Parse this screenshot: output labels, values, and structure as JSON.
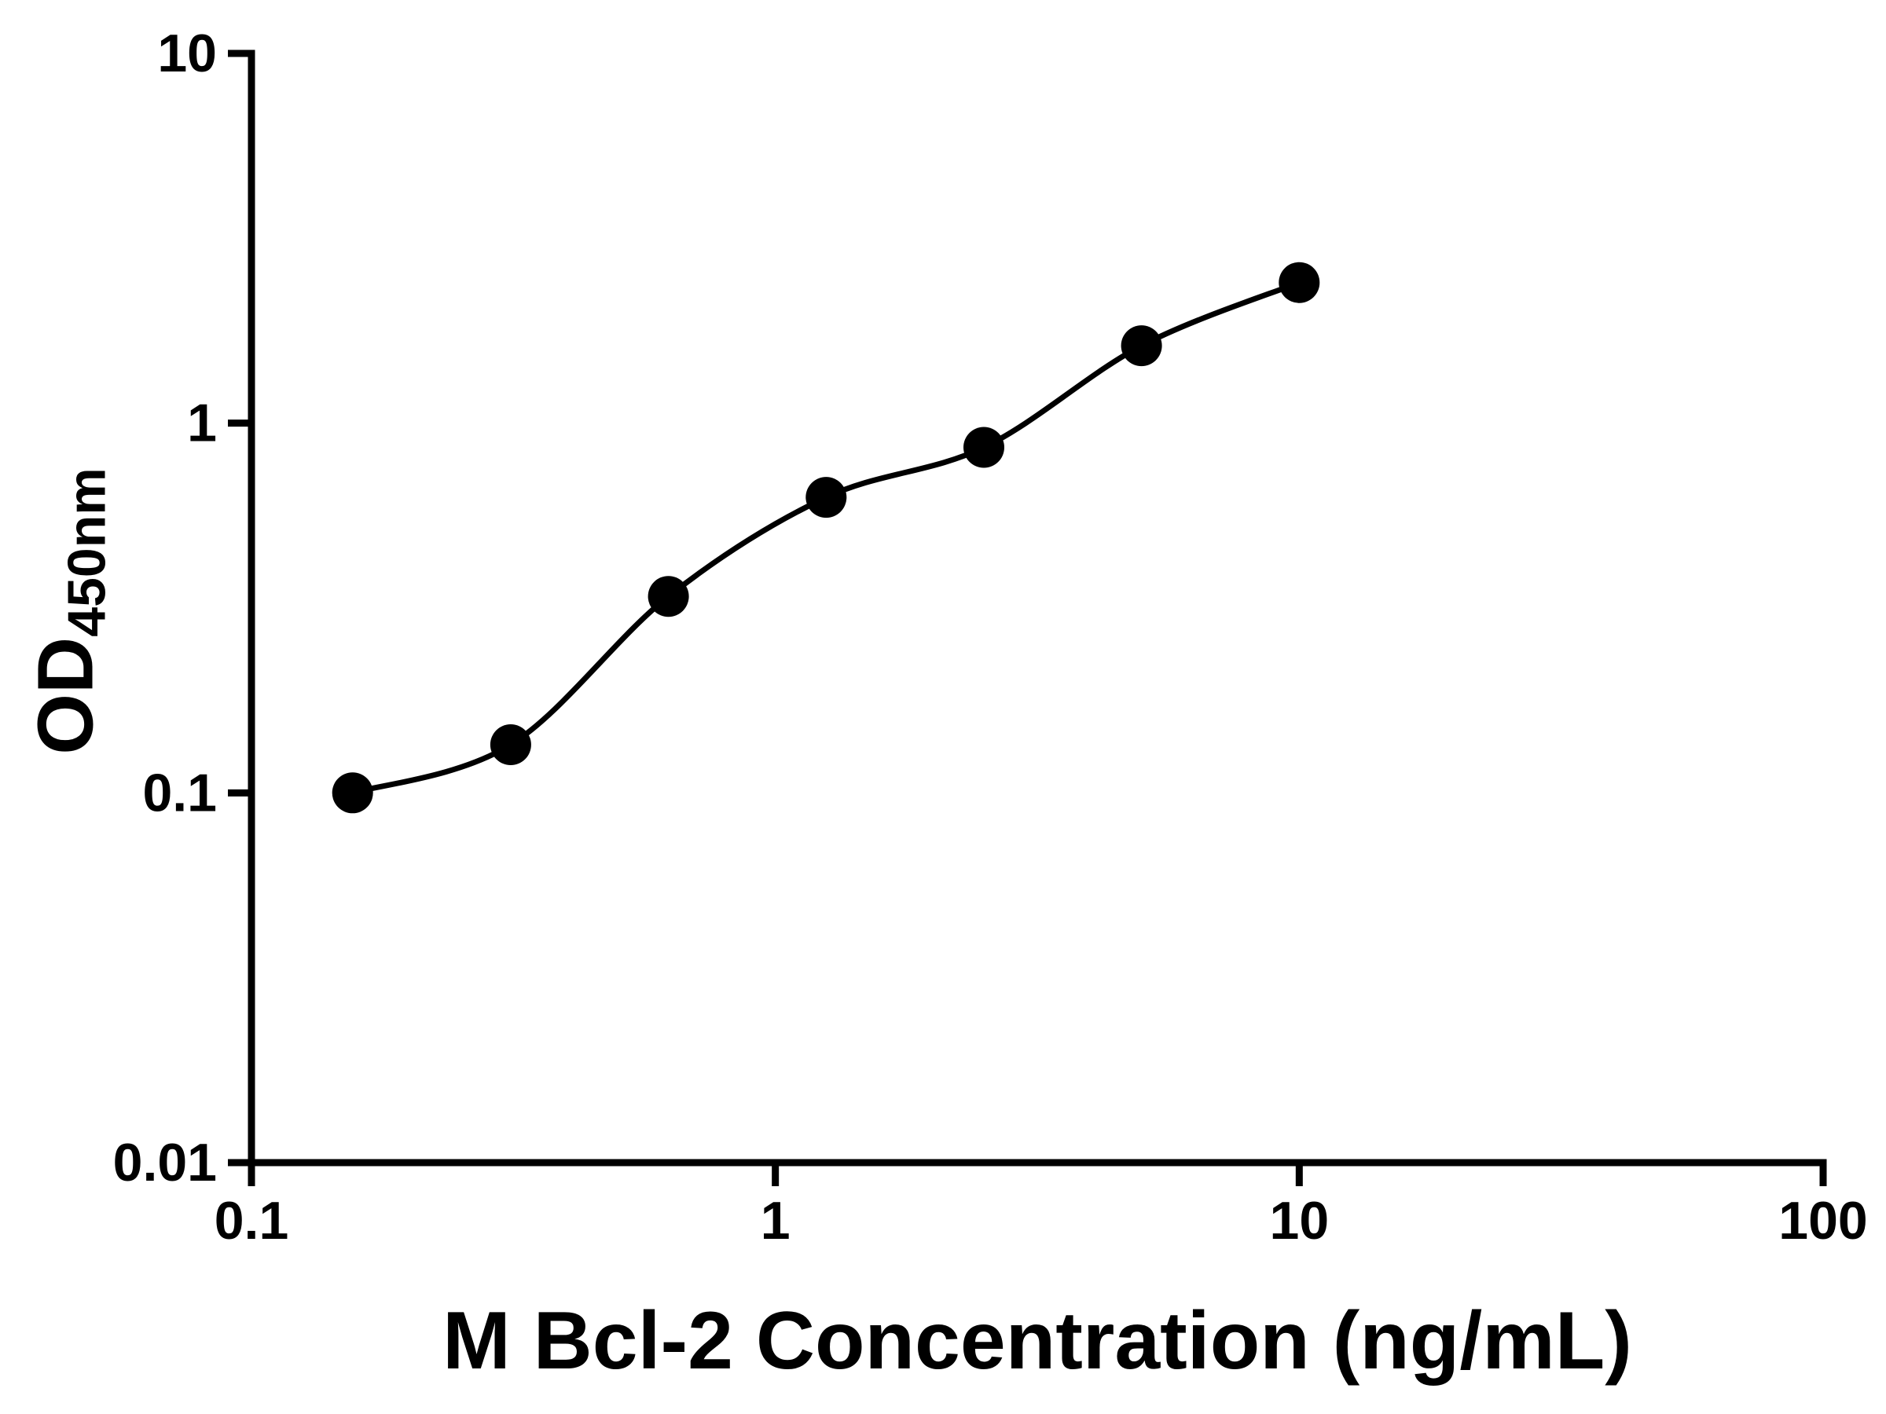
{
  "chart_data": {
    "type": "scatter",
    "xlabel": "M Bcl-2 Concentration (ng/mL)",
    "ylabel_main": "OD",
    "ylabel_sub": "450nm",
    "x_scale": "log",
    "y_scale": "log",
    "xlim": [
      0.1,
      100
    ],
    "ylim": [
      0.01,
      10
    ],
    "x_ticks": [
      0.1,
      1,
      10,
      100
    ],
    "x_tick_labels": [
      "0.1",
      "1",
      "10",
      "100"
    ],
    "y_ticks": [
      0.01,
      0.1,
      1,
      10
    ],
    "y_tick_labels": [
      "0.01",
      "0.1",
      "1",
      "10"
    ],
    "grid": false,
    "legend": false,
    "fit_line": true,
    "series": [
      {
        "marker": "circle",
        "x": [
          0.156,
          0.3125,
          0.625,
          1.25,
          2.5,
          5,
          10
        ],
        "y": [
          0.1,
          0.135,
          0.34,
          0.63,
          0.86,
          1.62,
          2.4
        ]
      }
    ],
    "colors": {
      "axis": "#000000",
      "marker": "#000000",
      "line": "#000000",
      "background": "#ffffff"
    }
  }
}
